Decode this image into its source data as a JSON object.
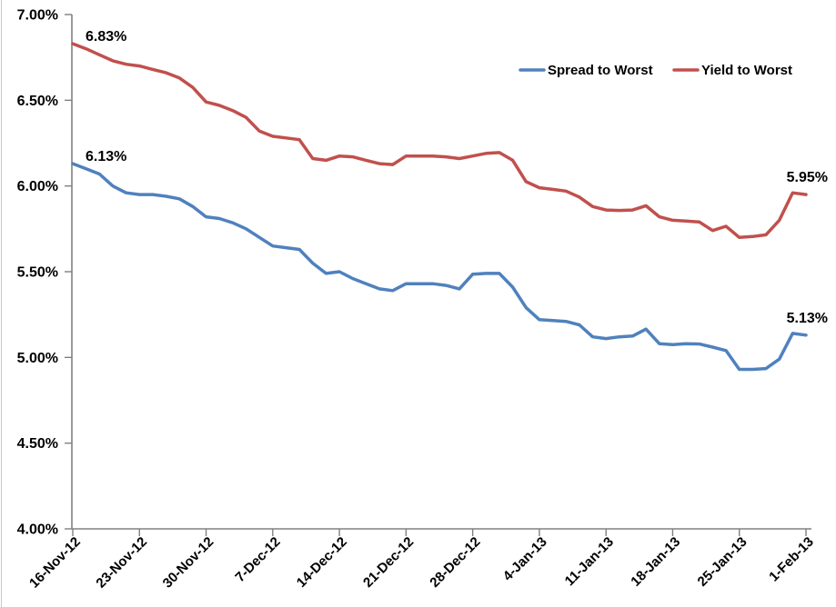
{
  "chart_data": {
    "type": "line",
    "title": "",
    "grid": false,
    "axis_color": "#808080",
    "text_color": "#000000",
    "background_color": "#ffffff",
    "x_axis": {
      "tick_labels": [
        "16-Nov-12",
        "23-Nov-12",
        "30-Nov-12",
        "7-Dec-12",
        "14-Dec-12",
        "21-Dec-12",
        "28-Dec-12",
        "4-Jan-13",
        "11-Jan-13",
        "18-Jan-13",
        "25-Jan-13",
        "1-Feb-13"
      ],
      "points_per_tick": 5,
      "label_rotation_deg": -45
    },
    "y_axis": {
      "tick_labels": [
        "7.00%",
        "6.50%",
        "6.00%",
        "5.50%",
        "5.00%",
        "4.50%",
        "4.00%"
      ],
      "tick_values": [
        7.0,
        6.5,
        6.0,
        5.5,
        5.0,
        4.5,
        4.0
      ],
      "min": 4.0,
      "max": 7.0,
      "step": 0.5,
      "format": "percent"
    },
    "legend": {
      "position": "top-right",
      "entries": [
        "Spread to Worst",
        "Yield to Worst"
      ]
    },
    "series": [
      {
        "name": "Spread to Worst",
        "color": "#4F81BD",
        "values": [
          6.13,
          6.1,
          6.07,
          6.0,
          5.96,
          5.95,
          5.95,
          5.94,
          5.925,
          5.88,
          5.82,
          5.81,
          5.785,
          5.75,
          5.7,
          5.65,
          5.64,
          5.63,
          5.55,
          5.49,
          5.5,
          5.46,
          5.43,
          5.4,
          5.39,
          5.43,
          5.43,
          5.43,
          5.42,
          5.4,
          5.485,
          5.49,
          5.49,
          5.41,
          5.29,
          5.22,
          5.215,
          5.21,
          5.19,
          5.12,
          5.11,
          5.12,
          5.125,
          5.165,
          5.08,
          5.075,
          5.08,
          5.078,
          5.06,
          5.04,
          4.93,
          4.93,
          4.935,
          4.99,
          5.14,
          5.13
        ]
      },
      {
        "name": "Yield to Worst",
        "color": "#C0504D",
        "values": [
          6.83,
          6.8,
          6.765,
          6.73,
          6.71,
          6.7,
          6.68,
          6.66,
          6.63,
          6.575,
          6.49,
          6.47,
          6.44,
          6.4,
          6.32,
          6.29,
          6.28,
          6.27,
          6.16,
          6.15,
          6.175,
          6.17,
          6.15,
          6.13,
          6.125,
          6.175,
          6.175,
          6.175,
          6.17,
          6.16,
          6.175,
          6.19,
          6.195,
          6.15,
          6.025,
          5.99,
          5.98,
          5.97,
          5.935,
          5.88,
          5.86,
          5.857,
          5.86,
          5.885,
          5.82,
          5.8,
          5.795,
          5.79,
          5.74,
          5.765,
          5.7,
          5.705,
          5.715,
          5.8,
          5.96,
          5.95
        ]
      }
    ],
    "point_labels": [
      {
        "series_index": 1,
        "point": "first",
        "text": "6.83%"
      },
      {
        "series_index": 0,
        "point": "first",
        "text": "6.13%"
      },
      {
        "series_index": 1,
        "point": "last",
        "text": "5.95%"
      },
      {
        "series_index": 0,
        "point": "last",
        "text": "5.13%"
      }
    ]
  }
}
